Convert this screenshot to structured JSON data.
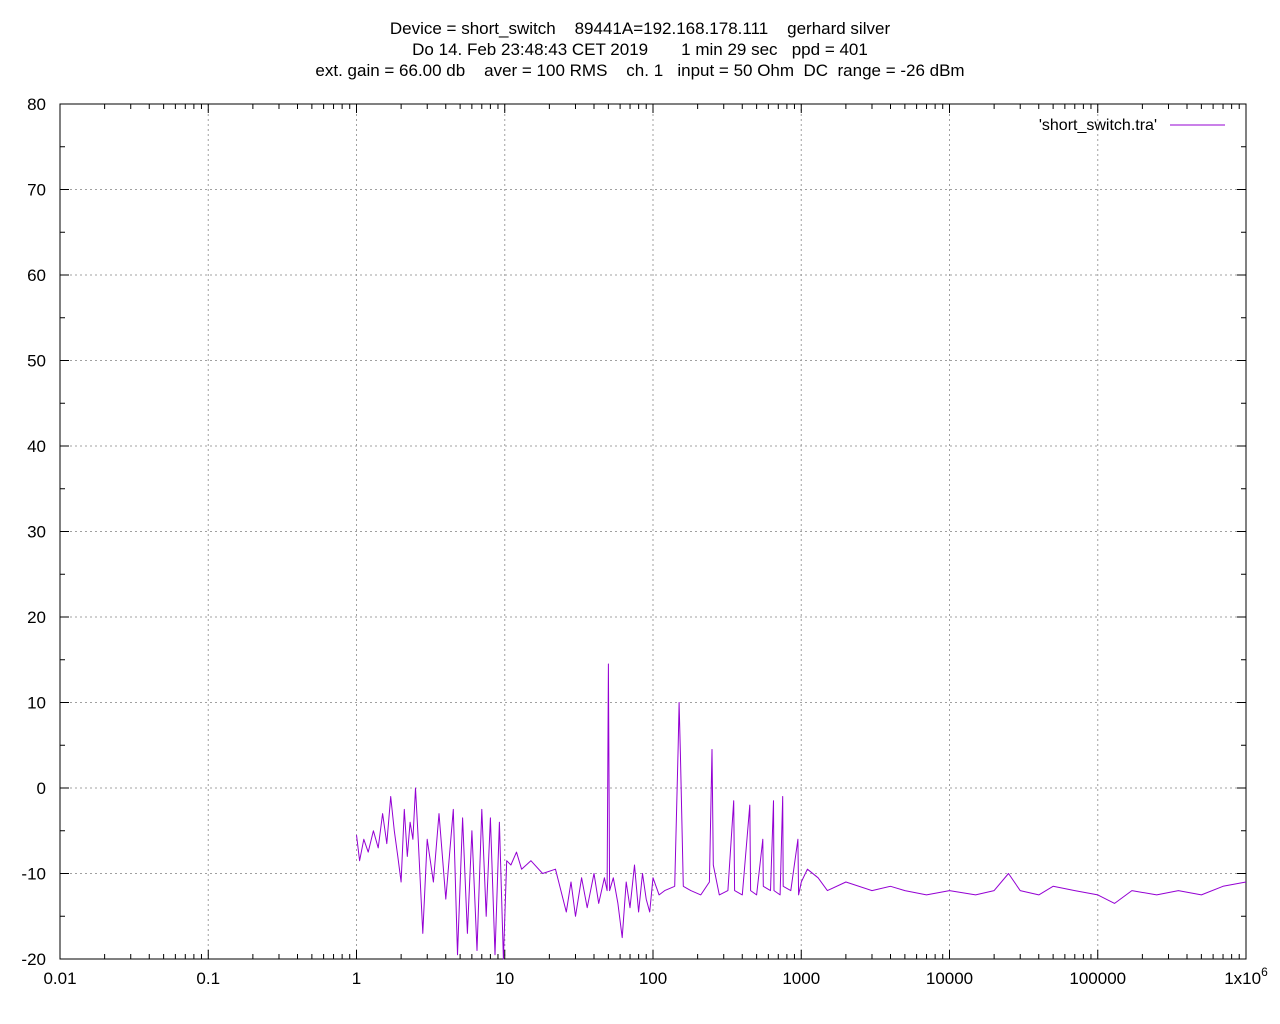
{
  "chart_data": {
    "type": "line",
    "title_lines": [
      "Device = short_switch    89441A=192.168.178.111    gerhard silver",
      "Do 14. Feb 23:48:43 CET 2019       1 min 29 sec   ppd = 401",
      "ext. gain = 66.00 db    aver = 100 RMS    ch. 1   input = 50 Ohm  DC  range = -26 dBm"
    ],
    "x_scale": "log",
    "xlim": [
      0.01,
      1000000
    ],
    "ylim": [
      -20,
      80
    ],
    "x_ticks": [
      {
        "value": 0.01,
        "label": "0.01"
      },
      {
        "value": 0.1,
        "label": "0.1"
      },
      {
        "value": 1,
        "label": "1"
      },
      {
        "value": 10,
        "label": "10"
      },
      {
        "value": 100,
        "label": "100"
      },
      {
        "value": 1000,
        "label": "1000"
      },
      {
        "value": 10000,
        "label": "10000"
      },
      {
        "value": 100000,
        "label": "100000"
      },
      {
        "value": 1000000,
        "label": "1x10^6"
      }
    ],
    "y_ticks": [
      -20,
      -10,
      0,
      10,
      20,
      30,
      40,
      50,
      60,
      70,
      80
    ],
    "grid": true,
    "legend_position": "top-right",
    "series": [
      {
        "name": "'short_switch.tra'",
        "color": "#9400d3",
        "points": [
          [
            1.0,
            -5.5
          ],
          [
            1.05,
            -8.5
          ],
          [
            1.12,
            -6.0
          ],
          [
            1.2,
            -7.5
          ],
          [
            1.3,
            -5.0
          ],
          [
            1.4,
            -7.0
          ],
          [
            1.5,
            -3.0
          ],
          [
            1.6,
            -6.5
          ],
          [
            1.7,
            -1.0
          ],
          [
            1.8,
            -5.0
          ],
          [
            1.9,
            -8.0
          ],
          [
            2.0,
            -11.0
          ],
          [
            2.1,
            -2.5
          ],
          [
            2.2,
            -8.0
          ],
          [
            2.3,
            -4.0
          ],
          [
            2.4,
            -6.0
          ],
          [
            2.5,
            0.0
          ],
          [
            2.6,
            -5.5
          ],
          [
            2.8,
            -17.0
          ],
          [
            3.0,
            -6.0
          ],
          [
            3.3,
            -11.0
          ],
          [
            3.6,
            -3.0
          ],
          [
            4.0,
            -13.0
          ],
          [
            4.5,
            -2.5
          ],
          [
            4.8,
            -19.5
          ],
          [
            5.2,
            -3.5
          ],
          [
            5.6,
            -17.0
          ],
          [
            6.0,
            -5.0
          ],
          [
            6.5,
            -19.0
          ],
          [
            7.0,
            -2.5
          ],
          [
            7.5,
            -15.0
          ],
          [
            8.0,
            -3.5
          ],
          [
            8.6,
            -19.5
          ],
          [
            9.2,
            -4.0
          ],
          [
            9.8,
            -20.0
          ],
          [
            10.3,
            -8.5
          ],
          [
            11.0,
            -9.0
          ],
          [
            12.0,
            -7.5
          ],
          [
            13.0,
            -9.5
          ],
          [
            15.0,
            -8.5
          ],
          [
            18.0,
            -10.0
          ],
          [
            22.0,
            -9.5
          ],
          [
            26.0,
            -14.5
          ],
          [
            28.0,
            -11.0
          ],
          [
            30.0,
            -15.0
          ],
          [
            33.0,
            -10.5
          ],
          [
            36.0,
            -14.0
          ],
          [
            40.0,
            -10.0
          ],
          [
            43.0,
            -13.5
          ],
          [
            47.0,
            -10.5
          ],
          [
            49.0,
            -12.0
          ],
          [
            50.0,
            14.5
          ],
          [
            51.0,
            -12.0
          ],
          [
            54.0,
            -10.5
          ],
          [
            58.0,
            -13.5
          ],
          [
            62.0,
            -17.5
          ],
          [
            66.0,
            -11.0
          ],
          [
            70.0,
            -14.0
          ],
          [
            75.0,
            -9.0
          ],
          [
            80.0,
            -14.5
          ],
          [
            85.0,
            -10.0
          ],
          [
            90.0,
            -13.0
          ],
          [
            95.0,
            -14.5
          ],
          [
            100.0,
            -10.5
          ],
          [
            110.0,
            -12.5
          ],
          [
            120.0,
            -12.0
          ],
          [
            140.0,
            -11.5
          ],
          [
            148.0,
            5.0
          ],
          [
            150.0,
            10.0
          ],
          [
            153.0,
            4.0
          ],
          [
            160.0,
            -11.5
          ],
          [
            180.0,
            -12.0
          ],
          [
            210.0,
            -12.5
          ],
          [
            240.0,
            -11.0
          ],
          [
            250.0,
            4.5
          ],
          [
            255.0,
            -9.0
          ],
          [
            280.0,
            -12.5
          ],
          [
            320.0,
            -12.0
          ],
          [
            350.0,
            -1.5
          ],
          [
            355.0,
            -12.0
          ],
          [
            400.0,
            -12.5
          ],
          [
            450.0,
            -2.0
          ],
          [
            455.0,
            -12.0
          ],
          [
            500.0,
            -12.5
          ],
          [
            550.0,
            -6.0
          ],
          [
            555.0,
            -11.5
          ],
          [
            620.0,
            -12.0
          ],
          [
            650.0,
            -1.5
          ],
          [
            655.0,
            -12.0
          ],
          [
            720.0,
            -12.5
          ],
          [
            750.0,
            -1.0
          ],
          [
            755.0,
            -11.5
          ],
          [
            850.0,
            -12.0
          ],
          [
            950.0,
            -6.0
          ],
          [
            960.0,
            -12.5
          ],
          [
            1000.0,
            -11.0
          ],
          [
            1100.0,
            -9.5
          ],
          [
            1300.0,
            -10.5
          ],
          [
            1500.0,
            -12.0
          ],
          [
            2000.0,
            -11.0
          ],
          [
            3000.0,
            -12.0
          ],
          [
            4000.0,
            -11.5
          ],
          [
            5000.0,
            -12.0
          ],
          [
            7000.0,
            -12.5
          ],
          [
            10000.0,
            -12.0
          ],
          [
            15000.0,
            -12.5
          ],
          [
            20000.0,
            -12.0
          ],
          [
            25000.0,
            -10.0
          ],
          [
            30000.0,
            -12.0
          ],
          [
            40000.0,
            -12.5
          ],
          [
            50000.0,
            -11.5
          ],
          [
            70000.0,
            -12.0
          ],
          [
            100000.0,
            -12.5
          ],
          [
            130000.0,
            -13.5
          ],
          [
            170000.0,
            -12.0
          ],
          [
            250000.0,
            -12.5
          ],
          [
            350000.0,
            -12.0
          ],
          [
            500000.0,
            -12.5
          ],
          [
            700000.0,
            -11.5
          ],
          [
            1000000.0,
            -11.0
          ]
        ]
      }
    ]
  }
}
